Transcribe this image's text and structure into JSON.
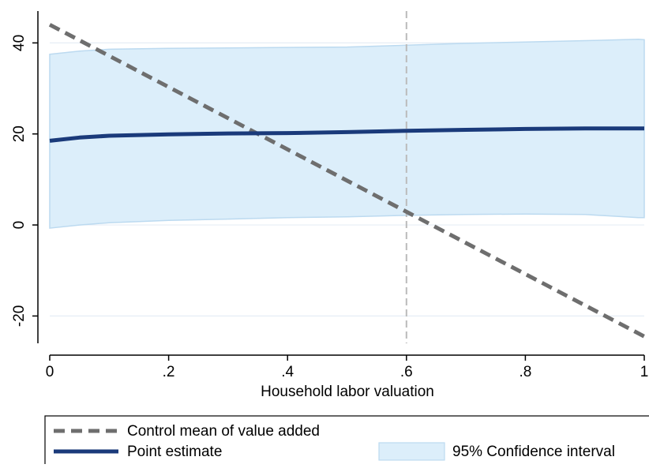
{
  "chart_data": {
    "type": "line",
    "xlabel": "Household labor valuation",
    "ylabel": "",
    "xlim": [
      0,
      1
    ],
    "ylim": [
      -26,
      47
    ],
    "x_ticks": [
      0,
      0.2,
      0.4,
      0.6,
      0.8,
      1
    ],
    "x_tick_labels": [
      "0",
      ".2",
      ".4",
      ".6",
      ".8",
      "1"
    ],
    "y_ticks": [
      -20,
      0,
      20,
      40
    ],
    "y_tick_labels": [
      "-20",
      "0",
      "20",
      "40"
    ],
    "grid": true,
    "vertical_reference_line": {
      "x": 0.6,
      "style": "dashed",
      "color": "#bbbbbb"
    },
    "series": [
      {
        "name": "Control mean of value added",
        "style": "dashed",
        "color": "#6e6e6e",
        "x": [
          0,
          1
        ],
        "y": [
          44,
          -24.5
        ]
      },
      {
        "name": "Point estimate",
        "style": "solid",
        "color": "#1a3a7a",
        "x": [
          0,
          0.05,
          0.1,
          0.2,
          0.3,
          0.4,
          0.5,
          0.6,
          0.7,
          0.8,
          0.9,
          1.0
        ],
        "y": [
          18.5,
          19.2,
          19.6,
          19.9,
          20.1,
          20.2,
          20.4,
          20.7,
          20.9,
          21.1,
          21.2,
          21.2
        ]
      }
    ],
    "confidence_band": {
      "name": "95% Confidence interval",
      "fill": "#dceefa",
      "stroke": "#bcdaf0",
      "x": [
        0,
        0.05,
        0.1,
        0.2,
        0.3,
        0.4,
        0.5,
        0.6,
        0.7,
        0.8,
        0.9,
        0.99,
        1.0
      ],
      "upper": [
        37.5,
        38.2,
        38.6,
        38.8,
        38.9,
        39.0,
        39.1,
        39.5,
        39.9,
        40.2,
        40.5,
        40.8,
        40.7
      ],
      "lower": [
        -0.7,
        0.0,
        0.5,
        1.0,
        1.3,
        1.6,
        1.8,
        2.1,
        2.3,
        2.4,
        2.3,
        1.6,
        1.6
      ]
    },
    "legend": {
      "placement": "bottom",
      "entries": [
        {
          "label": "Control mean of value added",
          "kind": "dashed-line"
        },
        {
          "label": "Point estimate",
          "kind": "solid-line"
        },
        {
          "label": "95% Confidence interval",
          "kind": "area"
        }
      ]
    }
  }
}
